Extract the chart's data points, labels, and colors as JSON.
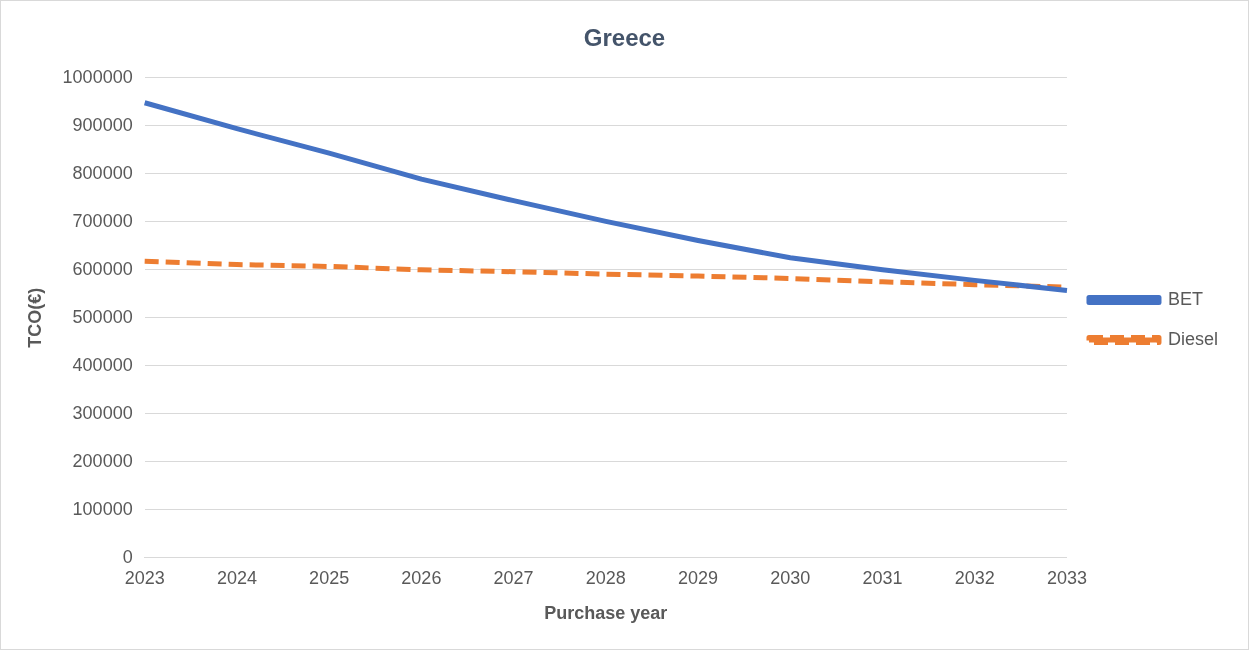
{
  "chart_data": {
    "type": "line",
    "title": "Greece",
    "xlabel": "Purchase year",
    "ylabel": "TCO(€)",
    "categories": [
      "2023",
      "2024",
      "2025",
      "2026",
      "2027",
      "2028",
      "2029",
      "2030",
      "2031",
      "2032",
      "2033"
    ],
    "series": [
      {
        "name": "BET",
        "color": "#4472c4",
        "line_style": "solid",
        "values": [
          948000,
          894000,
          843000,
          789000,
          744000,
          701000,
          661000,
          625000,
          600000,
          578000,
          557000
        ]
      },
      {
        "name": "Diesel",
        "color": "#ed7d31",
        "line_style": "dashed",
        "values": [
          618000,
          611000,
          607000,
          600000,
          596000,
          591000,
          587000,
          582000,
          575000,
          569000,
          564000
        ]
      }
    ],
    "ylim": [
      0,
      1000000
    ],
    "yticks": [
      0,
      100000,
      200000,
      300000,
      400000,
      500000,
      600000,
      700000,
      800000,
      900000,
      1000000
    ],
    "grid": "y",
    "legend": "right",
    "marker": "none"
  }
}
